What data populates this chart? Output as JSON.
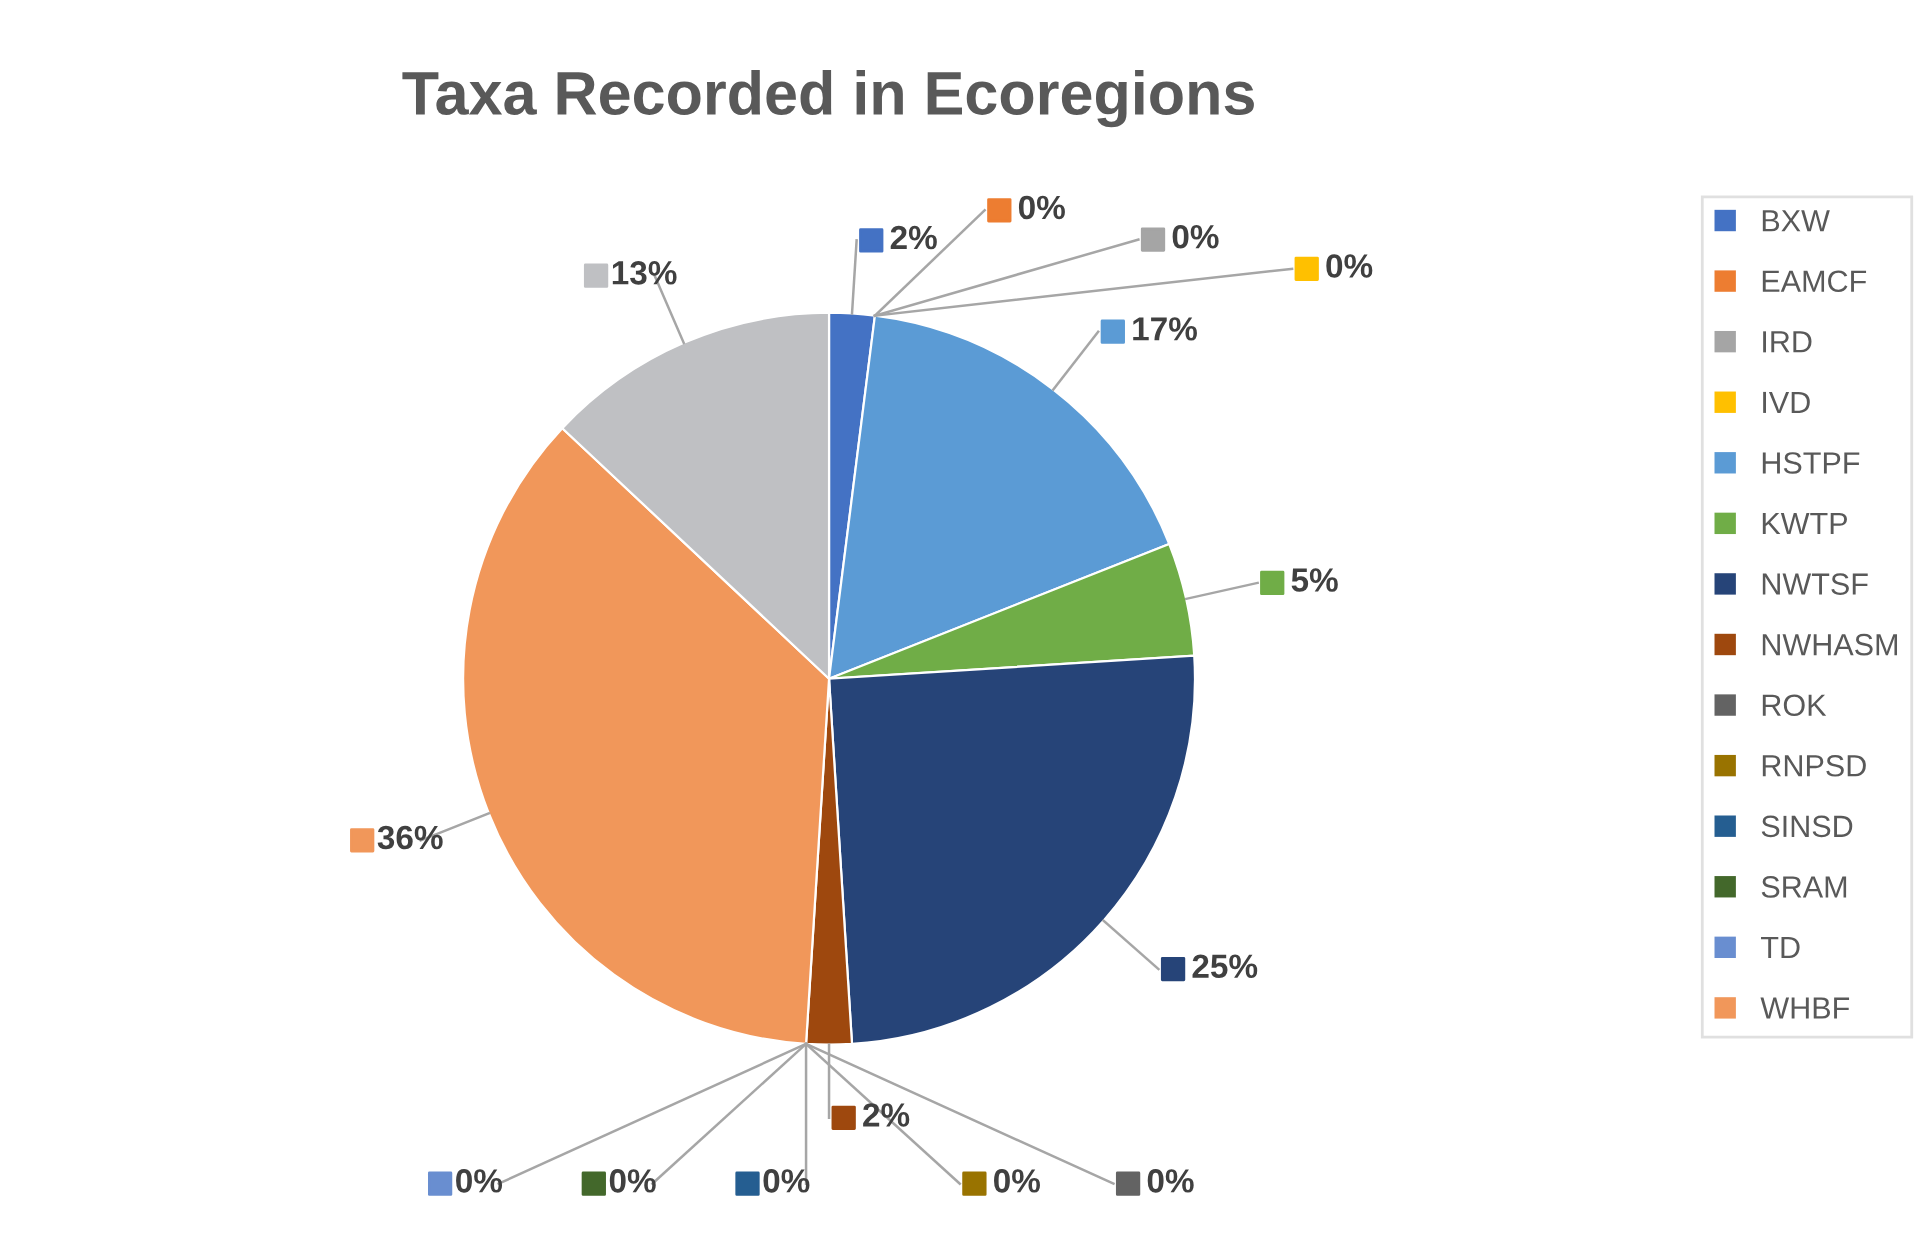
{
  "chart_data": {
    "type": "pie",
    "title": "Taxa Recorded in Ecoregions",
    "categories": [
      "BXW",
      "EAMCF",
      "IRD",
      "IVD",
      "HSTPF",
      "KWTP",
      "NWTSF",
      "NWHASM",
      "ROK",
      "RNPSD",
      "SINSD",
      "SRAM",
      "TD",
      "WHBF",
      null
    ],
    "values": [
      2,
      0,
      0,
      0,
      17,
      5,
      25,
      2,
      0,
      0,
      0,
      0,
      0,
      36,
      13
    ],
    "colors": [
      "#4472c4",
      "#ed7d31",
      "#a5a5a5",
      "#ffc000",
      "#5b9bd5",
      "#70ad47",
      "#264478",
      "#9e480e",
      "#636363",
      "#997300",
      "#255e91",
      "#43682b",
      "#698ed0",
      "#f1975a",
      "#bfc0c3"
    ],
    "value_labels": [
      "2%",
      "0%",
      "0%",
      "0%",
      "17%",
      "5%",
      "25%",
      "2%",
      "0%",
      "0%",
      "0%",
      "0%",
      "0%",
      "36%",
      "13%"
    ],
    "legend": "right"
  }
}
